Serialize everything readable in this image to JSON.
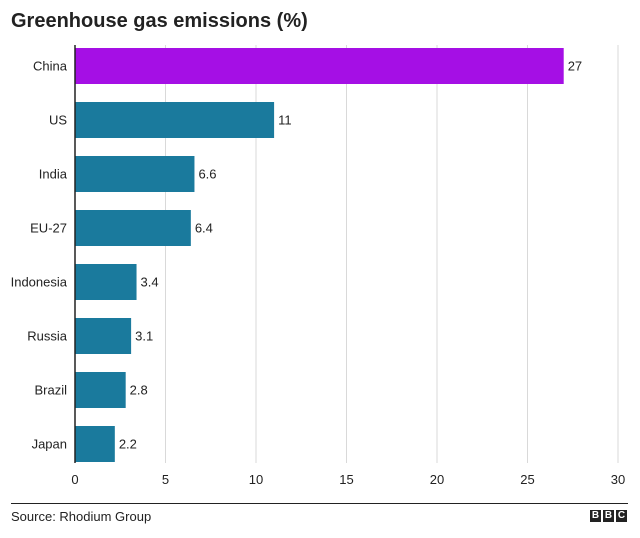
{
  "chart_data": {
    "type": "bar",
    "orientation": "horizontal",
    "title": "Greenhouse gas emissions (%)",
    "categories": [
      "China",
      "US",
      "India",
      "EU-27",
      "Indonesia",
      "Russia",
      "Brazil",
      "Japan"
    ],
    "values": [
      27,
      11,
      6.6,
      6.4,
      3.4,
      3.1,
      2.8,
      2.2
    ],
    "value_labels": [
      "27",
      "11",
      "6.6",
      "6.4",
      "3.4",
      "3.1",
      "2.8",
      "2.2"
    ],
    "xlim": [
      0,
      30
    ],
    "xticks": [
      0,
      5,
      10,
      15,
      20,
      25,
      30
    ],
    "grid": true,
    "colors": {
      "highlight": "#a50fe5",
      "default": "#1a7a9d",
      "gridline": "#d9d9d9",
      "baseline": "#222222"
    },
    "highlight_category": "China",
    "source": "Source: Rhodium Group"
  },
  "logo": [
    "B",
    "B",
    "C"
  ]
}
